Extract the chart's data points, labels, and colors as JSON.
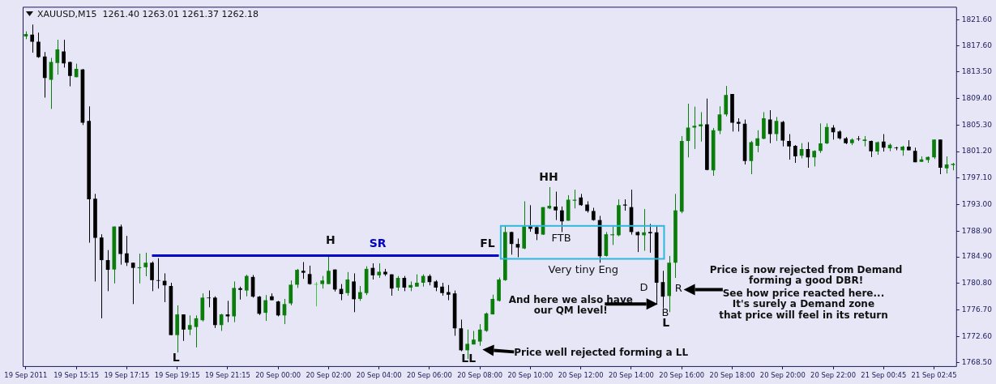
{
  "chart_data": {
    "type": "candlestick",
    "title": "XAUUSD,M15  1261.40 1263.01 1261.37 1262.18",
    "categories": [
      "19 Sep 2011",
      null,
      null,
      null,
      null,
      null,
      null,
      null,
      "19 Sep 15:15",
      null,
      null,
      null,
      null,
      null,
      null,
      null,
      "19 Sep 17:15",
      null,
      null,
      null,
      null,
      null,
      null,
      null,
      "19 Sep 19:15",
      null,
      null,
      null,
      null,
      null,
      null,
      null,
      "19 Sep 21:15",
      null,
      null,
      null,
      null,
      null,
      null,
      null,
      "20 Sep 00:00",
      null,
      null,
      null,
      null,
      null,
      null,
      null,
      "20 Sep 02:00",
      null,
      null,
      null,
      null,
      null,
      null,
      null,
      "20 Sep 04:00",
      null,
      null,
      null,
      null,
      null,
      null,
      null,
      "20 Sep 06:00",
      null,
      null,
      null,
      null,
      null,
      null,
      null,
      "20 Sep 08:00",
      null,
      null,
      null,
      null,
      null,
      null,
      null,
      "20 Sep 10:00",
      null,
      null,
      null,
      null,
      null,
      null,
      null,
      "20 Sep 12:00",
      null,
      null,
      null,
      null,
      null,
      null,
      null,
      "20 Sep 14:00",
      null,
      null,
      null,
      null,
      null,
      null,
      null,
      "20 Sep 16:00",
      null,
      null,
      null,
      null,
      null,
      null,
      null,
      "20 Sep 18:00",
      null,
      null,
      null,
      null,
      null,
      null,
      null,
      "20 Sep 20:00",
      null,
      null,
      null,
      null,
      null,
      null,
      null,
      "20 Sep 22:00",
      null,
      null,
      null,
      null,
      null,
      null,
      null,
      "21 Sep 00:45",
      null,
      null,
      null,
      null,
      null,
      null,
      null,
      "21 Sep 02:45",
      null,
      null,
      null
    ],
    "ohlc": [
      [
        1819.0,
        1819.8,
        1818.6,
        1819.4
      ],
      [
        1819.3,
        1820.85,
        1816.5,
        1818.2
      ],
      [
        1818.2,
        1819.6,
        1815.7,
        1815.8
      ],
      [
        1815.9,
        1816.6,
        1809.55,
        1812.6
      ],
      [
        1812.3,
        1815.7,
        1807.8,
        1815.05
      ],
      [
        1814.9,
        1818.5,
        1813.1,
        1817.0
      ],
      [
        1816.7,
        1818.5,
        1814.2,
        1814.85
      ],
      [
        1815.05,
        1815.1,
        1811.3,
        1812.9
      ],
      [
        1812.7,
        1814.8,
        1812.7,
        1814.0
      ],
      [
        1813.9,
        1814.0,
        1805.3,
        1805.65
      ],
      [
        1805.95,
        1808.2,
        1787.1,
        1793.8
      ],
      [
        1793.9,
        1794.65,
        1781.1,
        1787.85
      ],
      [
        1787.9,
        1788.4,
        1775.4,
        1784.4
      ],
      [
        1784.4,
        1785.95,
        1779.6,
        1782.9
      ],
      [
        1782.95,
        1789.6,
        1780.8,
        1789.6
      ],
      [
        1789.6,
        1789.9,
        1783.7,
        1785.35
      ],
      [
        1785.45,
        1788.15,
        1783.5,
        1784.0
      ],
      [
        1784.0,
        1784.0,
        1777.6,
        1783.2
      ],
      [
        1783.15,
        1785.4,
        1780.8,
        1783.3
      ],
      [
        1783.3,
        1785.55,
        1781.9,
        1784.0
      ],
      [
        1784.0,
        1784.2,
        1779.6,
        1781.3
      ],
      [
        1781.3,
        1784.7,
        1780.0,
        1781.2
      ],
      [
        1781.2,
        1782.35,
        1777.9,
        1780.5
      ],
      [
        1780.4,
        1780.9,
        1772.8,
        1772.8
      ],
      [
        1772.8,
        1777.4,
        1770.1,
        1776.0
      ],
      [
        1776.0,
        1776.0,
        1771.9,
        1773.65
      ],
      [
        1773.65,
        1775.85,
        1772.8,
        1774.35
      ],
      [
        1774.05,
        1775.85,
        1770.9,
        1775.4
      ],
      [
        1775.1,
        1779.25,
        1774.9,
        1778.6
      ],
      [
        1778.6,
        1779.7,
        1777.1,
        1778.5
      ],
      [
        1778.6,
        1778.8,
        1773.9,
        1774.35
      ],
      [
        1774.35,
        1776.1,
        1773.45,
        1776.0
      ],
      [
        1776.0,
        1778.1,
        1774.8,
        1775.7
      ],
      [
        1775.7,
        1781.1,
        1774.8,
        1780.1
      ],
      [
        1780.05,
        1780.3,
        1778.3,
        1779.8
      ],
      [
        1779.7,
        1782.15,
        1778.8,
        1781.95
      ],
      [
        1781.8,
        1782.1,
        1778.6,
        1778.75
      ],
      [
        1778.75,
        1778.85,
        1775.9,
        1776.1
      ],
      [
        1776.25,
        1779.0,
        1775.0,
        1778.2
      ],
      [
        1778.8,
        1779.25,
        1778.2,
        1778.2
      ],
      [
        1778.0,
        1778.1,
        1775.7,
        1775.85
      ],
      [
        1775.85,
        1778.4,
        1774.5,
        1777.6
      ],
      [
        1777.7,
        1781.25,
        1777.4,
        1780.6
      ],
      [
        1780.6,
        1783.05,
        1780.1,
        1782.9
      ],
      [
        1782.75,
        1784.1,
        1781.5,
        1782.45
      ],
      [
        1782.25,
        1783.55,
        1780.6,
        1780.7
      ],
      [
        1780.6,
        1781.0,
        1777.25,
        1780.7
      ],
      [
        1780.7,
        1781.95,
        1780.0,
        1781.25
      ],
      [
        1780.7,
        1785.05,
        1780.7,
        1782.75
      ],
      [
        1782.95,
        1782.95,
        1779.55,
        1779.85
      ],
      [
        1779.95,
        1780.7,
        1778.2,
        1779.15
      ],
      [
        1779.3,
        1782.55,
        1778.9,
        1781.4
      ],
      [
        1781.1,
        1782.35,
        1776.35,
        1778.35
      ],
      [
        1778.4,
        1780.4,
        1778.1,
        1779.45
      ],
      [
        1779.3,
        1783.45,
        1779.0,
        1783.05
      ],
      [
        1783.2,
        1783.9,
        1781.4,
        1782.05
      ],
      [
        1782.05,
        1783.9,
        1781.65,
        1782.6
      ],
      [
        1782.6,
        1783.05,
        1781.95,
        1782.2
      ],
      [
        1782.2,
        1782.2,
        1778.9,
        1780.0
      ],
      [
        1780.15,
        1781.95,
        1779.65,
        1781.65
      ],
      [
        1781.65,
        1781.95,
        1779.6,
        1780.15
      ],
      [
        1780.15,
        1781.1,
        1779.6,
        1780.55
      ],
      [
        1780.3,
        1782.2,
        1780.3,
        1780.9
      ],
      [
        1780.9,
        1782.2,
        1780.3,
        1781.95
      ],
      [
        1781.95,
        1782.2,
        1780.5,
        1781.0
      ],
      [
        1781.1,
        1781.3,
        1779.6,
        1780.15
      ],
      [
        1780.3,
        1780.9,
        1778.9,
        1779.3
      ],
      [
        1779.45,
        1780.55,
        1778.2,
        1779.05
      ],
      [
        1779.25,
        1779.7,
        1772.7,
        1773.85
      ],
      [
        1773.85,
        1775.2,
        1770.3,
        1770.45
      ],
      [
        1770.45,
        1773.65,
        1769.1,
        1771.45
      ],
      [
        1771.35,
        1773.45,
        1771.35,
        1772.1
      ],
      [
        1771.8,
        1774.5,
        1771.15,
        1773.65
      ],
      [
        1773.45,
        1776.3,
        1773.3,
        1776.15
      ],
      [
        1776.0,
        1779.05,
        1776.0,
        1778.4
      ],
      [
        1778.1,
        1781.7,
        1778.0,
        1781.4
      ],
      [
        1781.3,
        1789.7,
        1781.2,
        1788.75
      ],
      [
        1788.75,
        1788.8,
        1785.25,
        1786.9
      ],
      [
        1786.9,
        1787.75,
        1784.85,
        1786.35
      ],
      [
        1786.2,
        1793.5,
        1786.1,
        1789.6
      ],
      [
        1789.8,
        1792.9,
        1788.8,
        1789.25
      ],
      [
        1789.5,
        1789.8,
        1787.5,
        1788.45
      ],
      [
        1788.35,
        1792.6,
        1788.3,
        1792.6
      ],
      [
        1792.4,
        1795.7,
        1792.3,
        1792.8
      ],
      [
        1792.7,
        1795.0,
        1790.6,
        1792.1
      ],
      [
        1792.1,
        1792.7,
        1788.75,
        1790.4
      ],
      [
        1790.5,
        1794.45,
        1790.5,
        1793.75
      ],
      [
        1793.6,
        1795.3,
        1792.4,
        1793.75
      ],
      [
        1794.1,
        1794.65,
        1792.8,
        1792.9
      ],
      [
        1793.0,
        1793.5,
        1791.75,
        1792.0
      ],
      [
        1792.0,
        1792.5,
        1790.5,
        1790.6
      ],
      [
        1790.6,
        1791.25,
        1784.0,
        1785.0
      ],
      [
        1785.05,
        1788.75,
        1784.95,
        1788.4
      ],
      [
        1788.25,
        1789.6,
        1786.75,
        1788.4
      ],
      [
        1788.25,
        1793.8,
        1788.1,
        1792.9
      ],
      [
        1793.0,
        1793.8,
        1792.05,
        1792.85
      ],
      [
        1792.6,
        1795.3,
        1788.35,
        1788.75
      ],
      [
        1788.75,
        1788.85,
        1785.65,
        1788.25
      ],
      [
        1788.25,
        1792.3,
        1785.85,
        1788.7
      ],
      [
        1788.75,
        1790.0,
        1785.55,
        1788.55
      ],
      [
        1788.7,
        1789.7,
        1777.5,
        1780.9
      ],
      [
        1781.0,
        1782.75,
        1776.95,
        1778.75
      ],
      [
        1778.85,
        1785.05,
        1776.35,
        1784.0
      ],
      [
        1784.0,
        1794.65,
        1781.65,
        1792.1
      ],
      [
        1791.9,
        1803.6,
        1791.65,
        1802.85
      ],
      [
        1802.85,
        1808.6,
        1800.3,
        1804.9
      ],
      [
        1804.9,
        1808.15,
        1801.6,
        1805.2
      ],
      [
        1805.1,
        1807.3,
        1802.75,
        1805.4
      ],
      [
        1805.4,
        1809.4,
        1798.3,
        1798.35
      ],
      [
        1798.3,
        1804.85,
        1797.45,
        1804.5
      ],
      [
        1804.4,
        1808.2,
        1803.9,
        1806.95
      ],
      [
        1806.95,
        1811.35,
        1806.65,
        1809.95
      ],
      [
        1810.1,
        1810.1,
        1804.3,
        1805.65
      ],
      [
        1805.8,
        1806.35,
        1804.3,
        1805.5
      ],
      [
        1805.5,
        1806.15,
        1799.2,
        1799.75
      ],
      [
        1799.75,
        1802.85,
        1797.7,
        1802.65
      ],
      [
        1802.1,
        1804.5,
        1801.1,
        1803.25
      ],
      [
        1803.2,
        1807.3,
        1803.1,
        1806.35
      ],
      [
        1806.15,
        1807.6,
        1802.5,
        1803.9
      ],
      [
        1803.9,
        1806.55,
        1802.85,
        1805.95
      ],
      [
        1805.8,
        1805.95,
        1802.0,
        1802.9
      ],
      [
        1802.85,
        1803.9,
        1799.95,
        1802.0
      ],
      [
        1802.1,
        1802.2,
        1799.45,
        1800.45
      ],
      [
        1800.55,
        1802.5,
        1800.15,
        1801.6
      ],
      [
        1801.6,
        1802.65,
        1798.7,
        1800.3
      ],
      [
        1800.3,
        1801.4,
        1798.9,
        1801.3
      ],
      [
        1801.3,
        1805.55,
        1801.0,
        1802.45
      ],
      [
        1802.45,
        1805.55,
        1802.35,
        1805.0
      ],
      [
        1804.9,
        1805.3,
        1803.05,
        1804.2
      ],
      [
        1804.3,
        1804.5,
        1803.05,
        1803.25
      ],
      [
        1803.25,
        1803.45,
        1802.35,
        1802.5
      ],
      [
        1802.5,
        1803.25,
        1802.2,
        1803.05
      ],
      [
        1803.2,
        1803.6,
        1802.85,
        1803.1
      ],
      [
        1802.85,
        1803.6,
        1802.0,
        1803.05
      ],
      [
        1802.85,
        1802.9,
        1800.35,
        1801.25
      ],
      [
        1801.2,
        1802.75,
        1800.7,
        1802.65
      ],
      [
        1802.75,
        1803.9,
        1801.2,
        1801.8
      ],
      [
        1801.7,
        1802.45,
        1801.25,
        1802.25
      ],
      [
        1801.8,
        1801.95,
        1801.4,
        1801.7
      ],
      [
        1801.4,
        1802.1,
        1800.55,
        1801.95
      ],
      [
        1801.95,
        1802.95,
        1801.4,
        1801.4
      ],
      [
        1801.3,
        1801.8,
        1799.55,
        1799.55
      ],
      [
        1799.6,
        1800.45,
        1799.6,
        1800.0
      ],
      [
        1799.9,
        1800.45,
        1799.45,
        1800.35
      ],
      [
        1800.3,
        1803.05,
        1800.05,
        1803.05
      ],
      [
        1803.05,
        1803.05,
        1797.7,
        1798.7
      ],
      [
        1798.6,
        1800.45,
        1797.8,
        1799.2
      ],
      [
        1799.1,
        1799.45,
        1798.3,
        1799.3
      ]
    ],
    "colors": [
      "#0a7d0a",
      "#000000",
      "#000000",
      "#000000",
      "#0a7d0a",
      "#0a7d0a",
      "#000000",
      "#000000",
      "#0a7d0a",
      "#000000",
      "#000000",
      "#000000",
      "#000000",
      "#000000",
      "#0a7d0a",
      "#000000",
      "#000000",
      "#000000",
      "#0a7d0a",
      "#0a7d0a",
      "#000000",
      "#000000",
      "#000000",
      "#000000",
      "#0a7d0a",
      "#000000",
      "#0a7d0a",
      "#0a7d0a",
      "#0a7d0a",
      "#000000",
      "#000000",
      "#0a7d0a",
      "#000000",
      "#0a7d0a",
      "#000000",
      "#0a7d0a",
      "#000000",
      "#000000",
      "#0a7d0a",
      "#000000",
      "#000000",
      "#0a7d0a",
      "#0a7d0a",
      "#0a7d0a",
      "#000000",
      "#000000",
      "#3cc83c",
      "#0a7d0a",
      "#0a7d0a",
      "#000000",
      "#000000",
      "#0a7d0a",
      "#000000",
      "#0a7d0a",
      "#0a7d0a",
      "#000000",
      "#0a7d0a",
      "#000000",
      "#000000",
      "#0a7d0a",
      "#000000",
      "#0a7d0a",
      "#0a7d0a",
      "#0a7d0a",
      "#000000",
      "#000000",
      "#000000",
      "#000000",
      "#000000",
      "#000000",
      "#0a7d0a",
      "#0a7d0a",
      "#0a7d0a",
      "#0a7d0a",
      "#0a7d0a",
      "#0a7d0a",
      "#0a7d0a",
      "#000000",
      "#000000",
      "#0a7d0a",
      "#000000",
      "#000000",
      "#0a7d0a",
      "#0a7d0a",
      "#000000",
      "#000000",
      "#0a7d0a",
      "#0a7d0a",
      "#000000",
      "#000000",
      "#000000",
      "#000000",
      "#0a7d0a",
      "#0a7d0a",
      "#0a7d0a",
      "#000000",
      "#000000",
      "#000000",
      "#0a7d0a",
      "#000000",
      "#000000",
      "#000000",
      "#0a7d0a",
      "#0a7d0a",
      "#0a7d0a",
      "#0a7d0a",
      "#0a7d0a",
      "#0a7d0a",
      "#000000",
      "#0a7d0a",
      "#0a7d0a",
      "#0a7d0a",
      "#000000",
      "#000000",
      "#000000",
      "#0a7d0a",
      "#0a7d0a",
      "#0a7d0a",
      "#000000",
      "#0a7d0a",
      "#000000",
      "#000000",
      "#000000",
      "#0a7d0a",
      "#000000",
      "#0a7d0a",
      "#0a7d0a",
      "#0a7d0a",
      "#000000",
      "#000000",
      "#000000",
      "#0a7d0a",
      "#000000",
      "#0a7d0a",
      "#000000",
      "#0a7d0a",
      "#000000",
      "#0a7d0a",
      "#000000",
      "#0a7d0a",
      "#000000",
      "#000000",
      "#0a7d0a",
      "#0a7d0a",
      "#0a7d0a",
      "#000000",
      "#0a7d0a",
      "#0a7d0a"
    ],
    "series": [
      {
        "type": "line",
        "name": "SR",
        "color": "#0000cc",
        "values": [
          null,
          null,
          null,
          null,
          null,
          null,
          null,
          null,
          null,
          null,
          null,
          null,
          null,
          null,
          null,
          null,
          null,
          null,
          null,
          null,
          1785.1,
          null,
          null,
          null,
          null,
          null,
          null,
          null,
          null,
          null,
          null,
          null,
          null,
          null,
          null,
          null,
          null,
          null,
          null,
          null,
          null,
          null,
          null,
          null,
          null,
          null,
          null,
          null,
          null,
          null,
          null,
          null,
          null,
          null,
          null,
          null,
          null,
          null,
          null,
          null,
          null,
          null,
          null,
          null,
          null,
          null,
          null,
          null,
          null,
          null,
          null,
          null,
          null,
          null,
          null,
          1785.1,
          null,
          null,
          null,
          null,
          null,
          null,
          null,
          null,
          null,
          null,
          null,
          null,
          null,
          null,
          null,
          null,
          null,
          null,
          null,
          null,
          null,
          null,
          null,
          null,
          null,
          null,
          null,
          null,
          null,
          null,
          null,
          null,
          null,
          null,
          null,
          null,
          null,
          null,
          null,
          null,
          null,
          null,
          null,
          null,
          null,
          null,
          null,
          null,
          null,
          null,
          null,
          null,
          null,
          null,
          null,
          null,
          null,
          null,
          null,
          null,
          null,
          null,
          null,
          null,
          null,
          null,
          null,
          null,
          null,
          null,
          null,
          null
        ]
      }
    ],
    "ylim": [
      1768.0,
      1823.6
    ],
    "yticks": [
      {
        "value": 1768.5,
        "label": "1768.50"
      },
      {
        "value": 1772.6,
        "label": "1772.60"
      },
      {
        "value": 1776.7,
        "label": "1776.70"
      },
      {
        "value": 1780.8,
        "label": "1780.80"
      },
      {
        "value": 1784.9,
        "label": "1784.90"
      },
      {
        "value": 1788.9,
        "label": "1788.90"
      },
      {
        "value": 1793.0,
        "label": "1793.00"
      },
      {
        "value": 1797.1,
        "label": "1797.10"
      },
      {
        "value": 1801.2,
        "label": "1801.20"
      },
      {
        "value": 1805.3,
        "label": "1805.30"
      },
      {
        "value": 1809.4,
        "label": "1809.40"
      },
      {
        "value": 1813.5,
        "label": "1813.50"
      },
      {
        "value": 1817.6,
        "label": "1817.60"
      },
      {
        "value": 1821.6,
        "label": "1821.60"
      }
    ],
    "annotations": [
      "L",
      "H",
      "FL",
      "HH",
      "FTB",
      "Very tiny Eng",
      "D",
      "B",
      "L",
      "R",
      "LL",
      "And here we also have\nour QM level!",
      "Price well rejected forming a LL",
      "Price is now rejected from Demand\nforming a good DBR!",
      "See how price reacted here...\nIt's surely a Demand zone\nthat price will feel in its return"
    ]
  }
}
